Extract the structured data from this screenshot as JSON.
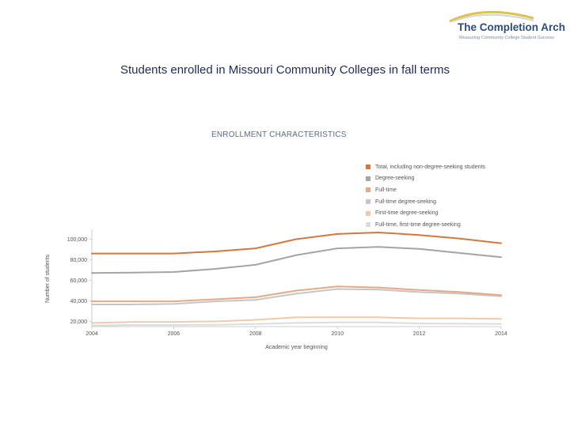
{
  "logo": {
    "title": "The Completion Arch",
    "tagline": "Measuring Community College Student Success"
  },
  "slide": {
    "title": "Students enrolled in Missouri Community Colleges in fall terms"
  },
  "colors": {
    "total": "#d4773f",
    "degree_seeking": "#a4a4a4",
    "full_time": "#e6a885",
    "full_time_degree_seeking": "#c6c6c6",
    "first_time_degree_seeking": "#f0c9ad",
    "full_time_first_time_degree_seeking": "#dcdcdc",
    "axis": "#cccccc"
  },
  "chart_data": {
    "type": "line",
    "title": "ENROLLMENT CHARACTERISTICS",
    "xlabel": "Academic year beginning",
    "ylabel": "Number of students",
    "x": [
      2004,
      2005,
      2006,
      2007,
      2008,
      2009,
      2010,
      2011,
      2012,
      2013,
      2014
    ],
    "xticks": [
      "2004",
      "2006",
      "2008",
      "2010",
      "2012",
      "2014"
    ],
    "xlim": [
      2004,
      2014
    ],
    "ylim": [
      15000,
      108000
    ],
    "yticks": [
      {
        "value": 20000,
        "label": "20,000"
      },
      {
        "value": 40000,
        "label": "40,000"
      },
      {
        "value": 60000,
        "label": "60,000"
      },
      {
        "value": 80000,
        "label": "80,000"
      },
      {
        "value": 100000,
        "label": "100,000"
      }
    ],
    "legend_position": "top-right",
    "series": [
      {
        "key": "total",
        "name": "Total, including non-degree-seeking students",
        "values": [
          86000,
          86000,
          86000,
          88000,
          91000,
          100000,
          105000,
          106500,
          104000,
          100500,
          96000
        ]
      },
      {
        "key": "degree_seeking",
        "name": "Degree-seeking",
        "values": [
          67000,
          67500,
          68000,
          71000,
          75000,
          84500,
          91000,
          92500,
          90500,
          86500,
          82500
        ]
      },
      {
        "key": "full_time",
        "name": "Full-time",
        "values": [
          39500,
          39500,
          39500,
          41500,
          43500,
          50000,
          54000,
          53000,
          50500,
          48500,
          45500
        ]
      },
      {
        "key": "full_time_degree_seeking",
        "name": "Full-time degree-seeking",
        "values": [
          36500,
          36500,
          37000,
          39500,
          41000,
          47000,
          51500,
          51000,
          48500,
          47000,
          44500
        ]
      },
      {
        "key": "first_time_degree_seeking",
        "name": "First-time degree-seeking",
        "values": [
          18500,
          19500,
          19500,
          20000,
          21500,
          24000,
          24000,
          24000,
          23000,
          23000,
          22500
        ]
      },
      {
        "key": "full_time_first_time_degree_seeking",
        "name": "Full-time, first-time degree-seeking",
        "values": [
          16000,
          16500,
          16500,
          16800,
          17500,
          18500,
          19000,
          19000,
          18000,
          17800,
          17500
        ]
      }
    ]
  }
}
